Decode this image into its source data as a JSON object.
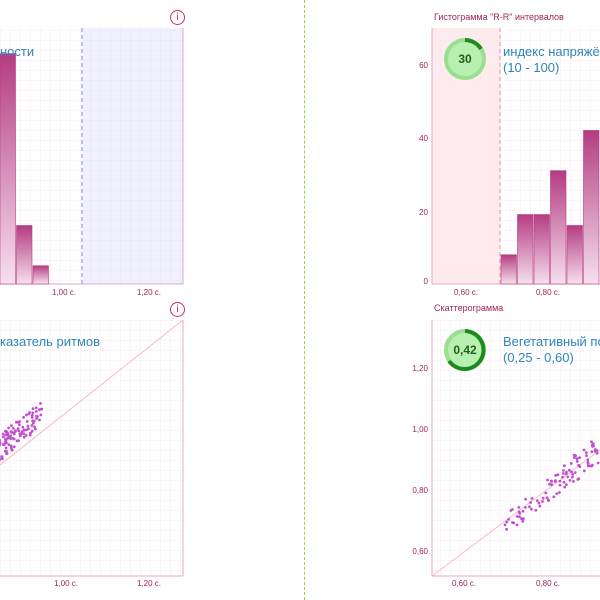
{
  "top_left": {
    "label_fragment": "ности"
  },
  "top_right": {
    "title": "Гистограмма \"R-R\" интервалов",
    "gauge_value": "30",
    "metric_line1": "индекс напряжён",
    "metric_line2": "(10 - 100)"
  },
  "bottom_left": {
    "label_fragment": "казатель ритмов"
  },
  "bottom_right": {
    "title": "Скаттерограмма",
    "gauge_value": "0,42",
    "metric_line1": "Вегетативный по",
    "metric_line2": "(0,25 - 0,60)"
  },
  "icons": {
    "top_left_info": "info-icon",
    "bottom_left_info": "info-icon",
    "info_glyph": "i"
  },
  "colors": {
    "bar_top": "#b43c82",
    "bar_bottom": "#f6e0ee",
    "scatter_point": "#c24fd0",
    "gauge_fill": "#b8f0b0",
    "gauge_ring": "#1e8a1e",
    "axis_text": "#a0245a"
  },
  "chart_data": [
    {
      "type": "bar",
      "panel": "top-left",
      "title": "",
      "x_tick_labels": [
        "1,00 с.",
        "1,20 с."
      ],
      "bar_values": [
        63,
        16,
        5
      ],
      "ylim": [
        0,
        70
      ],
      "grid": true
    },
    {
      "type": "bar",
      "panel": "top-right",
      "title": "Гистограмма \"R-R\" интервалов",
      "x_tick_labels": [
        "0,60 с.",
        "0,80 с."
      ],
      "y_tick_labels": [
        "0",
        "20",
        "40",
        "60"
      ],
      "bar_values": [
        8,
        19,
        19,
        31,
        16,
        42
      ],
      "ylim": [
        0,
        70
      ],
      "grid": true
    },
    {
      "type": "scatter",
      "panel": "bottom-left",
      "title": "",
      "x_tick_labels": [
        "1,00 с.",
        "1,20 с."
      ],
      "grid": true
    },
    {
      "type": "scatter",
      "panel": "bottom-right",
      "title": "Скаттерограмма",
      "x_tick_labels": [
        "0,60 с.",
        "0,80 с."
      ],
      "y_tick_labels": [
        "0,60",
        "0,80",
        "1,00",
        "1,20"
      ],
      "grid": true
    }
  ]
}
